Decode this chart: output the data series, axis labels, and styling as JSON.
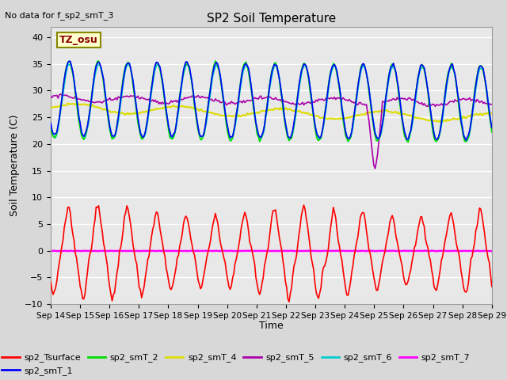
{
  "title": "SP2 Soil Temperature",
  "no_data_label": "No data for f_sp2_smT_3",
  "ylabel": "Soil Temperature (C)",
  "xlabel": "Time",
  "tz_label": "TZ_osu",
  "ylim": [
    -10,
    42
  ],
  "yticks": [
    -10,
    -5,
    0,
    5,
    10,
    15,
    20,
    25,
    30,
    35,
    40
  ],
  "x_tick_labels": [
    "Sep 14",
    "Sep 15",
    "Sep 16",
    "Sep 17",
    "Sep 18",
    "Sep 19",
    "Sep 20",
    "Sep 21",
    "Sep 22",
    "Sep 23",
    "Sep 24",
    "Sep 25",
    "Sep 26",
    "Sep 27",
    "Sep 28",
    "Sep 29"
  ],
  "fig_bg_color": "#d8d8d8",
  "plot_bg_color": "#e8e8e8",
  "series_colors": {
    "sp2_Tsurface": "#ff0000",
    "sp2_smT_1": "#0000ff",
    "sp2_smT_2": "#00dd00",
    "sp2_smT_4": "#dddd00",
    "sp2_smT_5": "#aa00aa",
    "sp2_smT_6": "#00cccc",
    "sp2_smT_7": "#ff00ff"
  }
}
